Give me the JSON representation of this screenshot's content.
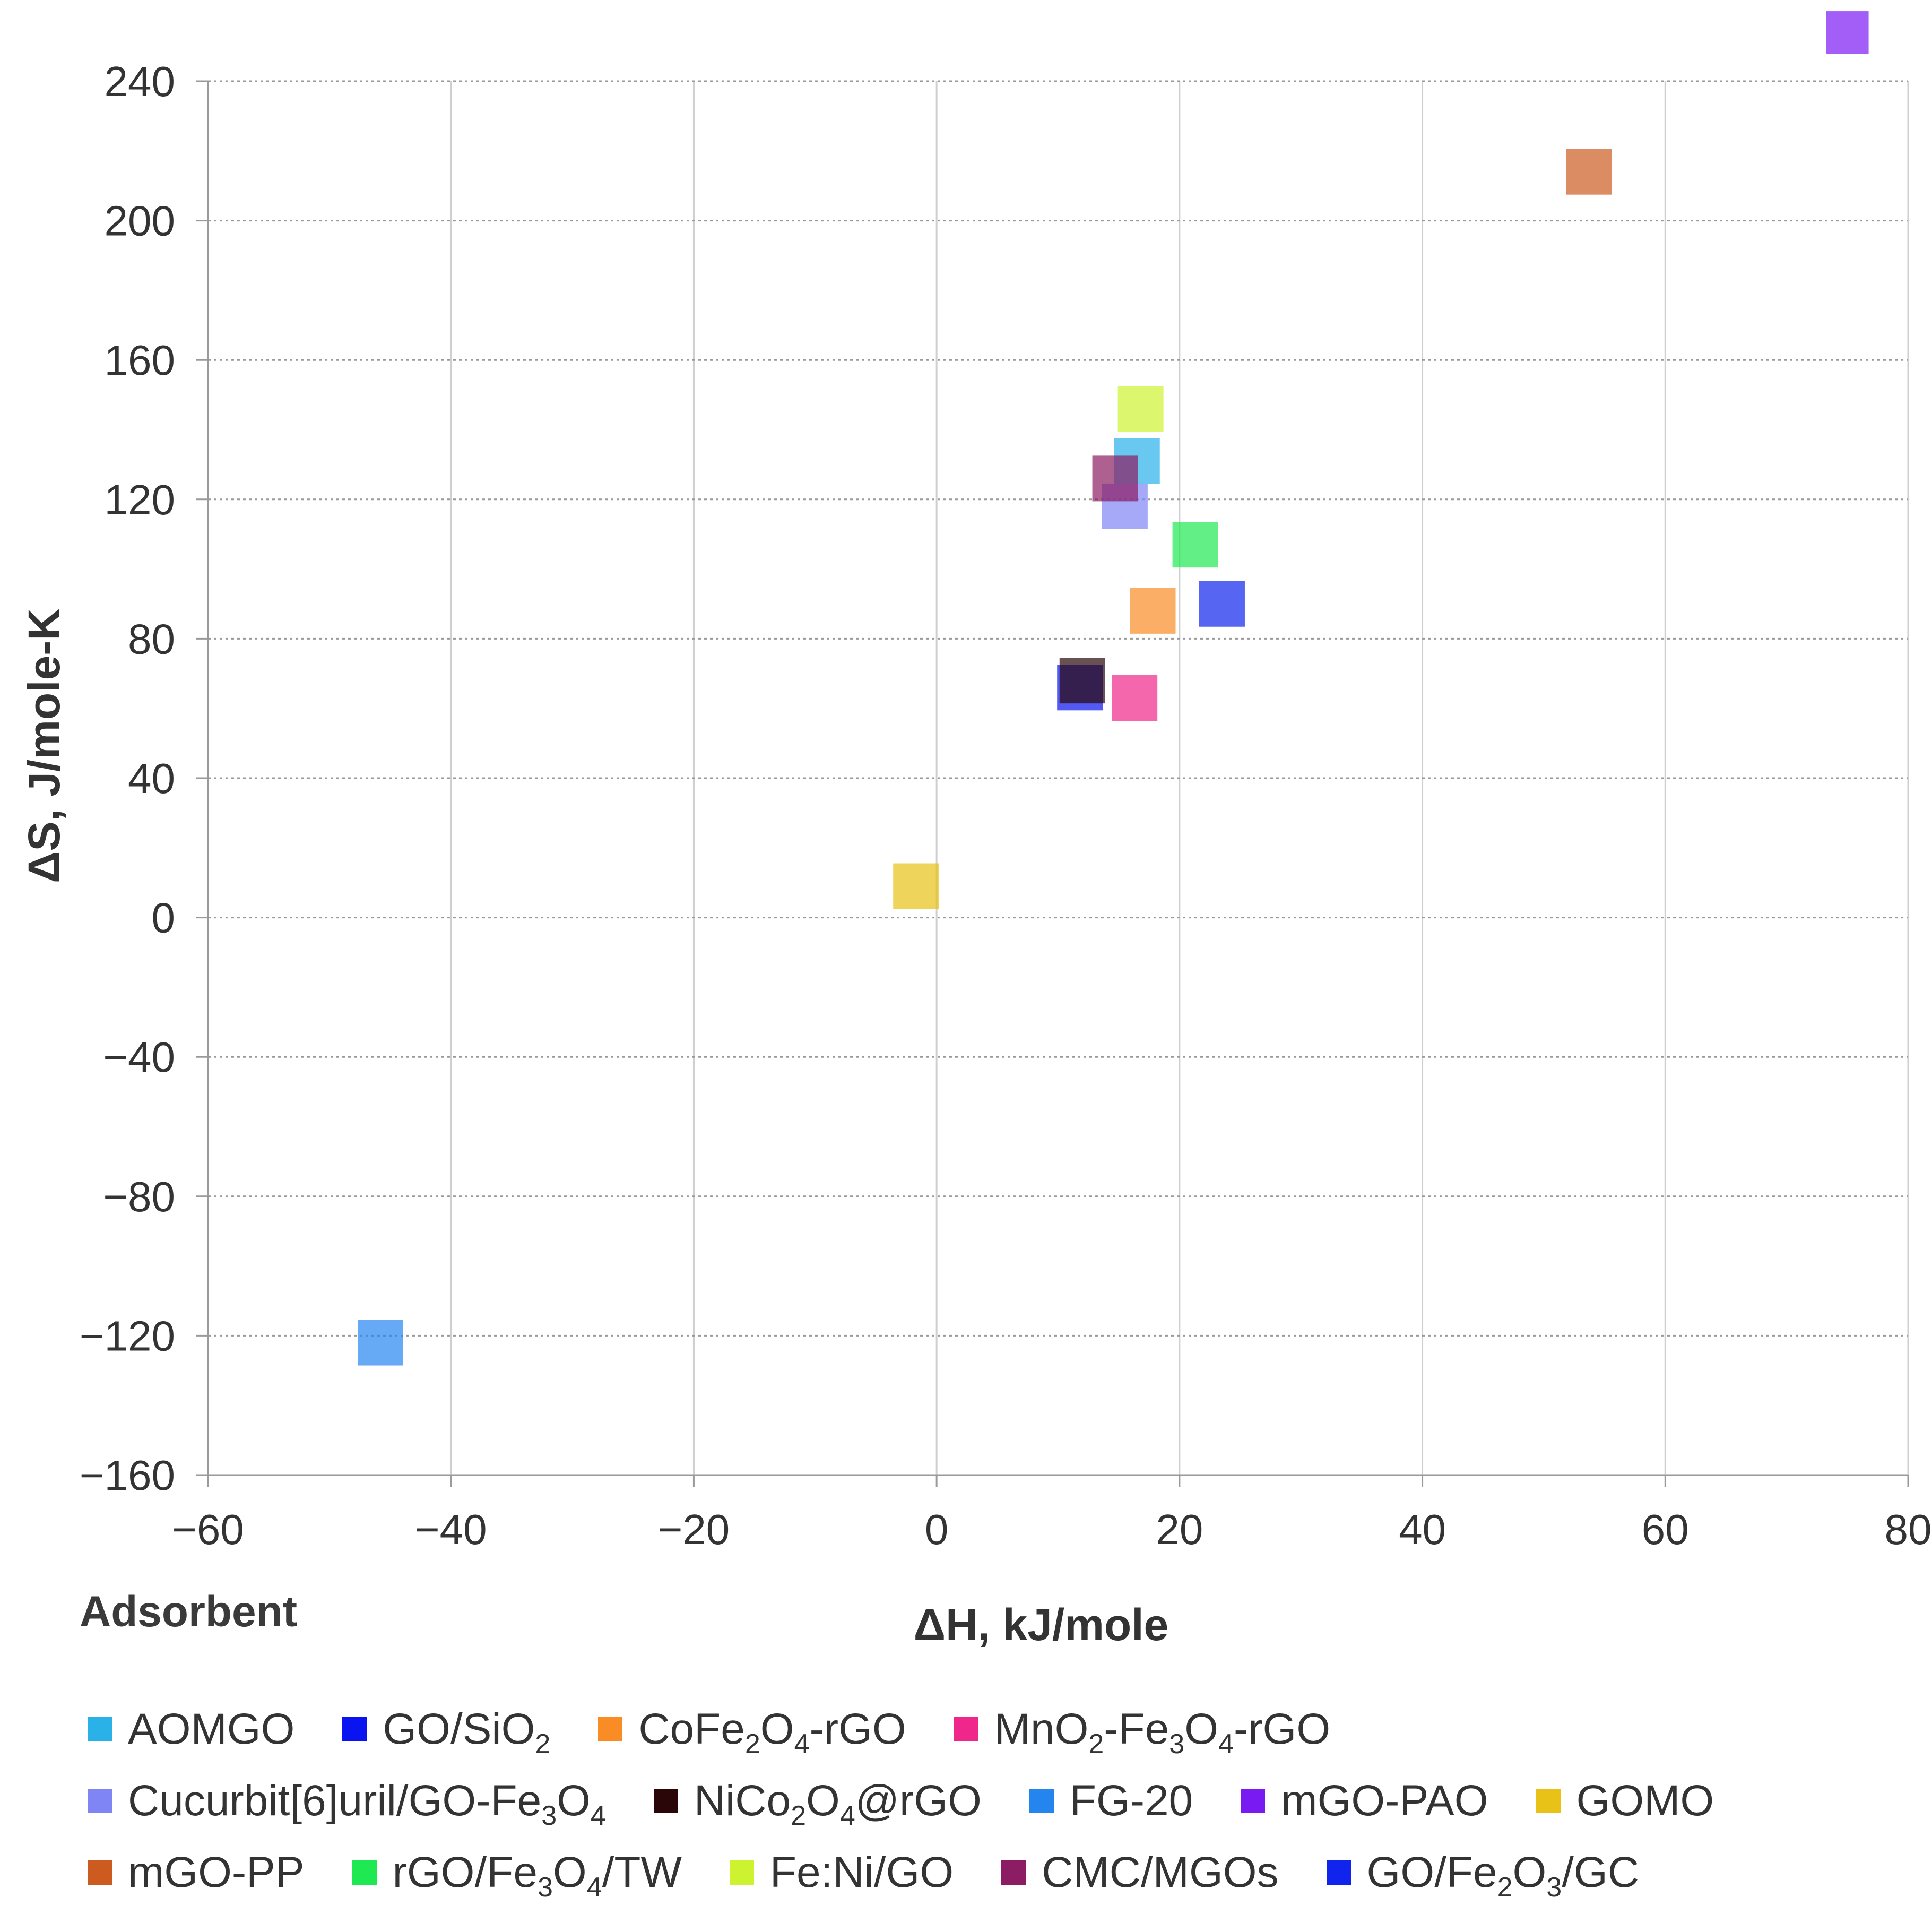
{
  "chart_data": {
    "type": "scatter",
    "xlabel": "ΔH, kJ/mole",
    "ylabel": "ΔS, J/mole-K",
    "xlim": [
      -60,
      80
    ],
    "ylim": [
      -160,
      240
    ],
    "x_ticks": [
      "−60",
      "−40",
      "−20",
      "0",
      "20",
      "40",
      "60",
      "80"
    ],
    "y_ticks": [
      "240",
      "200",
      "160",
      "120",
      "80",
      "40",
      "0",
      "−40",
      "−80",
      "−120",
      "−160"
    ],
    "grid": true,
    "legend_title": "Adsorbent",
    "legend_position": "bottom",
    "series": [
      {
        "name": "AOMGO",
        "name_parts": [
          "AOMGO"
        ],
        "color": "#29b1e8",
        "x": 16.5,
        "y": 131
      },
      {
        "name": "GO/SiO2",
        "name_parts": [
          "GO/SiO",
          {
            "sub": "2"
          }
        ],
        "color": "#0a14f0",
        "x": 11.8,
        "y": 66
      },
      {
        "name": "CoFe2O4-rGO",
        "name_parts": [
          "CoFe",
          {
            "sub": "2"
          },
          "O",
          {
            "sub": "4"
          },
          "-rGO"
        ],
        "color": "#f98c24",
        "x": 17.8,
        "y": 88
      },
      {
        "name": "MnO2-Fe3O4-rGO",
        "name_parts": [
          "MnO",
          {
            "sub": "2"
          },
          "-Fe",
          {
            "sub": "3"
          },
          "O",
          {
            "sub": "4"
          },
          "-rGO"
        ],
        "color": "#f0278a",
        "x": 16.3,
        "y": 63
      },
      {
        "name": "Cucurbit[6]uril/GO-Fe3O4",
        "name_parts": [
          "Cucurbit[6]uril/GO-Fe",
          {
            "sub": "3"
          },
          "O",
          {
            "sub": "4"
          }
        ],
        "color": "#7f85f5",
        "x": 15.5,
        "y": 118
      },
      {
        "name": "NiCo2O4@rGO",
        "name_parts": [
          "NiCo",
          {
            "sub": "2"
          },
          "O",
          {
            "sub": "4"
          },
          "@rGO"
        ],
        "color": "#2a0608",
        "x": 12.0,
        "y": 68
      },
      {
        "name": "FG-20",
        "name_parts": [
          "FG-20"
        ],
        "color": "#2585ef",
        "x": -45.8,
        "y": -122
      },
      {
        "name": "mGO-PAO",
        "name_parts": [
          "mGO-PAO"
        ],
        "color": "#7a1af3",
        "x": 75.0,
        "y": 254
      },
      {
        "name": "GOMO",
        "name_parts": [
          "GOMO"
        ],
        "color": "#e8c217",
        "x": -1.7,
        "y": 9
      },
      {
        "name": "mGO-PP",
        "name_parts": [
          "mGO-PP"
        ],
        "color": "#cd5b1f",
        "x": 53.7,
        "y": 214
      },
      {
        "name": "rGO/Fe3O4/TW",
        "name_parts": [
          "rGO/Fe",
          {
            "sub": "3"
          },
          "O",
          {
            "sub": "4"
          },
          "/TW"
        ],
        "color": "#1ee852",
        "x": 21.3,
        "y": 107
      },
      {
        "name": "Fe:Ni/GO",
        "name_parts": [
          "Fe:Ni/GO"
        ],
        "color": "#cdf230",
        "x": 16.8,
        "y": 146
      },
      {
        "name": "CMC/MGOs",
        "name_parts": [
          "CMC/MGOs"
        ],
        "color": "#8c1c63",
        "x": 14.7,
        "y": 126
      },
      {
        "name": "GO/Fe2O3/GC",
        "name_parts": [
          "GO/Fe",
          {
            "sub": "2"
          },
          "O",
          {
            "sub": "3"
          },
          "/GC"
        ],
        "color": "#1024ee",
        "x": 23.5,
        "y": 90
      }
    ],
    "legend_rows": [
      [
        0,
        1,
        2,
        3
      ],
      [
        4,
        5,
        6,
        7,
        8
      ],
      [
        9,
        10,
        11,
        12,
        13
      ]
    ]
  }
}
